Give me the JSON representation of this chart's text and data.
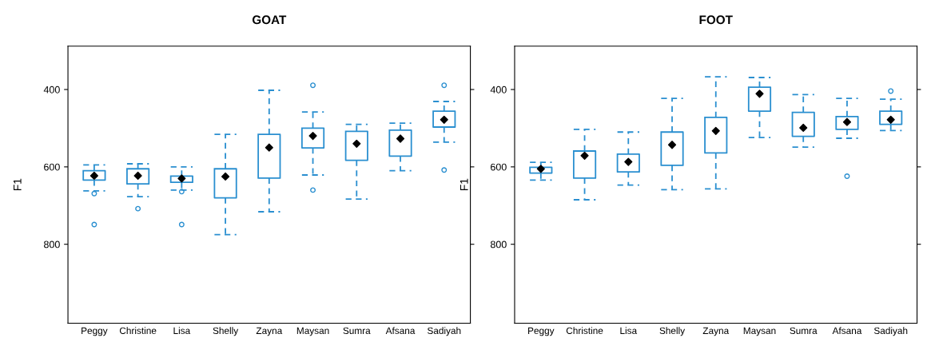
{
  "chart_data": [
    {
      "type": "box",
      "title": "GOAT",
      "ylabel": "F1",
      "ylim": [
        1004,
        288
      ],
      "yticks": [
        400,
        600,
        800
      ],
      "color": "#2a8fd0",
      "marker": "diamond",
      "categories": [
        "Peggy",
        "Christine",
        "Lisa",
        "Shelly",
        "Zayna",
        "Maysan",
        "Sumra",
        "Afsana",
        "Sadiyah"
      ],
      "boxes": [
        {
          "low": 595,
          "q1": 610,
          "median": 623,
          "q3": 634,
          "high": 662,
          "outliers": [
            669,
            749
          ]
        },
        {
          "low": 592,
          "q1": 605,
          "median": 623,
          "q3": 644,
          "high": 677,
          "outliers": [
            708
          ]
        },
        {
          "low": 600,
          "q1": 624,
          "median": 630,
          "q3": 640,
          "high": 660,
          "outliers": [
            664,
            749
          ]
        },
        {
          "low": 516,
          "q1": 605,
          "median": 625,
          "q3": 680,
          "high": 775
        },
        {
          "low": 402,
          "q1": 516,
          "median": 550,
          "q3": 629,
          "high": 716
        },
        {
          "low": 458,
          "q1": 500,
          "median": 520,
          "q3": 551,
          "high": 621,
          "outliers": [
            389,
            660
          ]
        },
        {
          "low": 490,
          "q1": 508,
          "median": 540,
          "q3": 583,
          "high": 683
        },
        {
          "low": 487,
          "q1": 505,
          "median": 527,
          "q3": 572,
          "high": 610
        },
        {
          "low": 431,
          "q1": 456,
          "median": 478,
          "q3": 497,
          "high": 536,
          "outliers": [
            389,
            608
          ]
        }
      ]
    },
    {
      "type": "box",
      "title": "FOOT",
      "ylabel": "F1",
      "ylim": [
        1004,
        288
      ],
      "yticks": [
        400,
        600,
        800
      ],
      "color": "#2a8fd0",
      "marker": "diamond",
      "categories": [
        "Peggy",
        "Christine",
        "Lisa",
        "Shelly",
        "Zayna",
        "Maysan",
        "Sumra",
        "Afsana",
        "Sadiyah"
      ],
      "boxes": [
        {
          "low": 588,
          "q1": 601,
          "median": 605,
          "q3": 616,
          "high": 634
        },
        {
          "low": 503,
          "q1": 559,
          "median": 571,
          "q3": 629,
          "high": 685
        },
        {
          "low": 510,
          "q1": 567,
          "median": 587,
          "q3": 613,
          "high": 647
        },
        {
          "low": 423,
          "q1": 510,
          "median": 543,
          "q3": 596,
          "high": 659
        },
        {
          "low": 367,
          "q1": 472,
          "median": 507,
          "q3": 564,
          "high": 657
        },
        {
          "low": 369,
          "q1": 394,
          "median": 411,
          "q3": 456,
          "high": 524
        },
        {
          "low": 413,
          "q1": 459,
          "median": 499,
          "q3": 521,
          "high": 549
        },
        {
          "low": 423,
          "q1": 470,
          "median": 484,
          "q3": 503,
          "high": 526,
          "outliers": [
            624
          ]
        },
        {
          "low": 425,
          "q1": 456,
          "median": 478,
          "q3": 490,
          "high": 506,
          "outliers": [
            404
          ]
        }
      ]
    }
  ]
}
